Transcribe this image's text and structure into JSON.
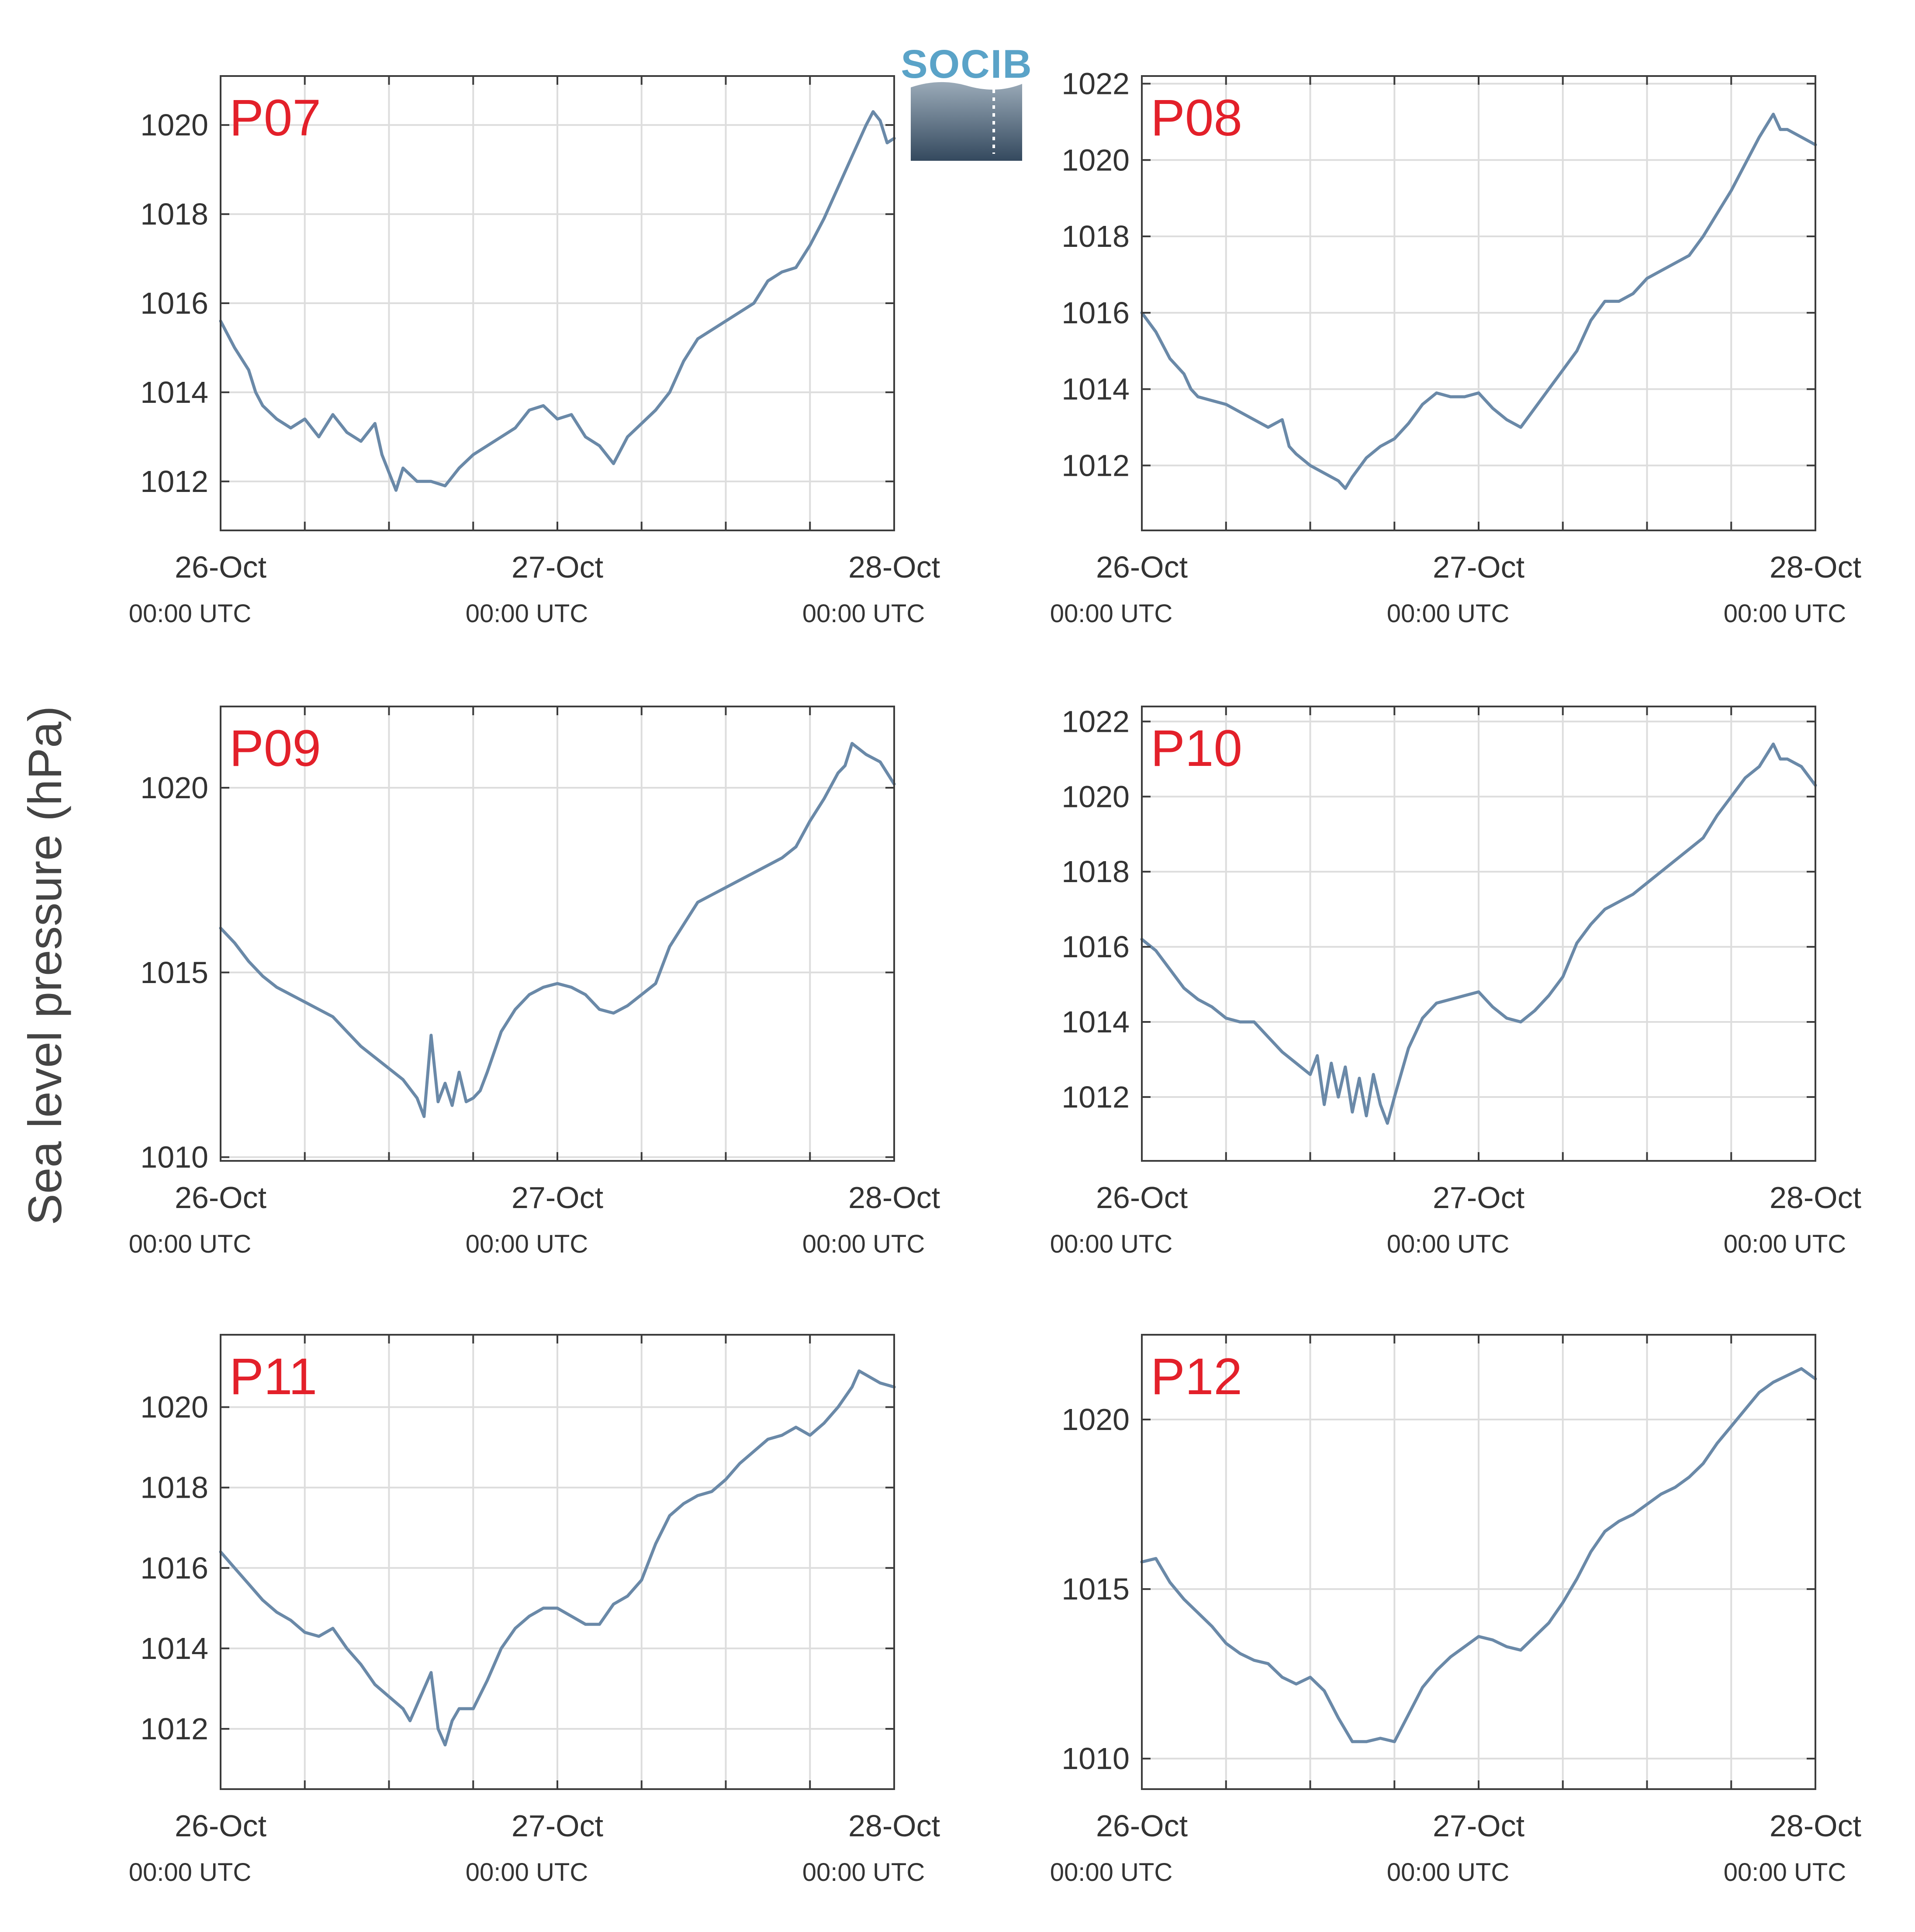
{
  "ylabel": "Sea level pressure (hPa)",
  "logo": {
    "text": "SOCIB"
  },
  "colors": {
    "line": "#6a89a8",
    "panel_label": "#e3202a",
    "logo_accent": "#5aa3c8"
  },
  "x_ticks": [
    {
      "date": "26-Oct",
      "time": "00:00 UTC"
    },
    {
      "date": "27-Oct",
      "time": "00:00 UTC"
    },
    {
      "date": "28-Oct",
      "time": "00:00 UTC"
    }
  ],
  "chart_data": [
    {
      "type": "line",
      "title": "P07",
      "x_unit": "hours since 26-Oct 00:00 UTC",
      "xlim": [
        0,
        48
      ],
      "ylim": [
        1010.9,
        1021.1
      ],
      "yticks": [
        1012,
        1014,
        1016,
        1018,
        1020
      ],
      "x": [
        0,
        1,
        2,
        2.5,
        3,
        4,
        5,
        6,
        7,
        8,
        9,
        10,
        11,
        11.5,
        12,
        12.5,
        13,
        14,
        15,
        16,
        17,
        18,
        19,
        20,
        21,
        22,
        23,
        24,
        25,
        26,
        27,
        28,
        29,
        30,
        31,
        32,
        33,
        34,
        35,
        36,
        37,
        38,
        39,
        40,
        41,
        42,
        43,
        44,
        45,
        46,
        46.5,
        47,
        47.5,
        48
      ],
      "y": [
        1015.6,
        1015.0,
        1014.5,
        1014.0,
        1013.7,
        1013.4,
        1013.2,
        1013.4,
        1013.0,
        1013.5,
        1013.1,
        1012.9,
        1013.3,
        1012.6,
        1012.2,
        1011.8,
        1012.3,
        1012.0,
        1012.0,
        1011.9,
        1012.3,
        1012.6,
        1012.8,
        1013.0,
        1013.2,
        1013.6,
        1013.7,
        1013.4,
        1013.5,
        1013.0,
        1012.8,
        1012.4,
        1013.0,
        1013.3,
        1013.6,
        1014.0,
        1014.7,
        1015.2,
        1015.4,
        1015.6,
        1015.8,
        1016.0,
        1016.5,
        1016.7,
        1016.8,
        1017.3,
        1017.9,
        1018.6,
        1019.3,
        1020.0,
        1020.3,
        1020.1,
        1019.6,
        1019.7
      ]
    },
    {
      "type": "line",
      "title": "P08",
      "x_unit": "hours since 26-Oct 00:00 UTC",
      "xlim": [
        0,
        48
      ],
      "ylim": [
        1010.3,
        1022.2
      ],
      "yticks": [
        1012,
        1014,
        1016,
        1018,
        1020,
        1022
      ],
      "x": [
        0,
        1,
        2,
        3,
        3.5,
        4,
        5,
        6,
        7,
        8,
        9,
        10,
        10.5,
        11,
        12,
        13,
        14,
        14.5,
        15,
        16,
        17,
        18,
        19,
        20,
        21,
        22,
        23,
        24,
        25,
        26,
        27,
        28,
        29,
        30,
        31,
        32,
        33,
        34,
        35,
        36,
        37,
        38,
        39,
        40,
        41,
        42,
        43,
        44,
        45,
        45.5,
        46,
        47,
        48
      ],
      "y": [
        1016.0,
        1015.5,
        1014.8,
        1014.4,
        1014.0,
        1013.8,
        1013.7,
        1013.6,
        1013.4,
        1013.2,
        1013.0,
        1013.2,
        1012.5,
        1012.3,
        1012.0,
        1011.8,
        1011.6,
        1011.4,
        1011.7,
        1012.2,
        1012.5,
        1012.7,
        1013.1,
        1013.6,
        1013.9,
        1013.8,
        1013.8,
        1013.9,
        1013.5,
        1013.2,
        1013.0,
        1013.5,
        1014.0,
        1014.5,
        1015.0,
        1015.8,
        1016.3,
        1016.3,
        1016.5,
        1016.9,
        1017.1,
        1017.3,
        1017.5,
        1018.0,
        1018.6,
        1019.2,
        1019.9,
        1020.6,
        1021.2,
        1020.8,
        1020.8,
        1020.6,
        1020.4
      ]
    },
    {
      "type": "line",
      "title": "P09",
      "x_unit": "hours since 26-Oct 00:00 UTC",
      "xlim": [
        0,
        48
      ],
      "ylim": [
        1009.9,
        1022.2
      ],
      "yticks": [
        1010,
        1015,
        1020
      ],
      "x": [
        0,
        1,
        2,
        3,
        4,
        5,
        6,
        7,
        8,
        9,
        10,
        11,
        12,
        13,
        14,
        14.5,
        15,
        15.5,
        16,
        16.5,
        17,
        17.5,
        18,
        18.5,
        19,
        20,
        21,
        22,
        23,
        24,
        25,
        26,
        27,
        28,
        29,
        30,
        31,
        32,
        33,
        34,
        35,
        36,
        37,
        38,
        39,
        40,
        41,
        42,
        43,
        44,
        44.5,
        45,
        46,
        47,
        48
      ],
      "y": [
        1016.2,
        1015.8,
        1015.3,
        1014.9,
        1014.6,
        1014.4,
        1014.2,
        1014.0,
        1013.8,
        1013.4,
        1013.0,
        1012.7,
        1012.4,
        1012.1,
        1011.6,
        1011.1,
        1013.3,
        1011.5,
        1012.0,
        1011.4,
        1012.3,
        1011.5,
        1011.6,
        1011.8,
        1012.3,
        1013.4,
        1014.0,
        1014.4,
        1014.6,
        1014.7,
        1014.6,
        1014.4,
        1014.0,
        1013.9,
        1014.1,
        1014.4,
        1014.7,
        1015.7,
        1016.3,
        1016.9,
        1017.1,
        1017.3,
        1017.5,
        1017.7,
        1017.9,
        1018.1,
        1018.4,
        1019.1,
        1019.7,
        1020.4,
        1020.6,
        1021.2,
        1020.9,
        1020.7,
        1020.1
      ]
    },
    {
      "type": "line",
      "title": "P10",
      "x_unit": "hours since 26-Oct 00:00 UTC",
      "xlim": [
        0,
        48
      ],
      "ylim": [
        1010.3,
        1022.4
      ],
      "yticks": [
        1012,
        1014,
        1016,
        1018,
        1020,
        1022
      ],
      "x": [
        0,
        1,
        2,
        3,
        4,
        5,
        6,
        7,
        8,
        9,
        10,
        11,
        12,
        12.5,
        13,
        13.5,
        14,
        14.5,
        15,
        15.5,
        16,
        16.5,
        17,
        17.5,
        18,
        19,
        20,
        21,
        22,
        23,
        24,
        25,
        26,
        27,
        28,
        29,
        30,
        31,
        32,
        33,
        34,
        35,
        36,
        37,
        38,
        39,
        40,
        41,
        42,
        43,
        44,
        45,
        45.5,
        46,
        47,
        48
      ],
      "y": [
        1016.2,
        1015.9,
        1015.4,
        1014.9,
        1014.6,
        1014.4,
        1014.1,
        1014.0,
        1014.0,
        1013.6,
        1013.2,
        1012.9,
        1012.6,
        1013.1,
        1011.8,
        1012.9,
        1012.0,
        1012.8,
        1011.6,
        1012.5,
        1011.5,
        1012.6,
        1011.8,
        1011.3,
        1012.0,
        1013.3,
        1014.1,
        1014.5,
        1014.6,
        1014.7,
        1014.8,
        1014.4,
        1014.1,
        1014.0,
        1014.3,
        1014.7,
        1015.2,
        1016.1,
        1016.6,
        1017.0,
        1017.2,
        1017.4,
        1017.7,
        1018.0,
        1018.3,
        1018.6,
        1018.9,
        1019.5,
        1020.0,
        1020.5,
        1020.8,
        1021.4,
        1021.0,
        1021.0,
        1020.8,
        1020.3
      ]
    },
    {
      "type": "line",
      "title": "P11",
      "x_unit": "hours since 26-Oct 00:00 UTC",
      "xlim": [
        0,
        48
      ],
      "ylim": [
        1010.5,
        1021.8
      ],
      "yticks": [
        1012,
        1014,
        1016,
        1018,
        1020
      ],
      "x": [
        0,
        1,
        2,
        3,
        4,
        5,
        6,
        7,
        8,
        9,
        10,
        11,
        12,
        13,
        13.5,
        14,
        15,
        15.5,
        16,
        16.5,
        17,
        18,
        19,
        20,
        21,
        22,
        23,
        24,
        25,
        26,
        27,
        28,
        29,
        30,
        31,
        32,
        33,
        34,
        35,
        36,
        37,
        38,
        39,
        40,
        41,
        42,
        43,
        44,
        45,
        45.5,
        46,
        47,
        48
      ],
      "y": [
        1016.4,
        1016.0,
        1015.6,
        1015.2,
        1014.9,
        1014.7,
        1014.4,
        1014.3,
        1014.5,
        1014.0,
        1013.6,
        1013.1,
        1012.8,
        1012.5,
        1012.2,
        1012.6,
        1013.4,
        1012.0,
        1011.6,
        1012.2,
        1012.5,
        1012.5,
        1013.2,
        1014.0,
        1014.5,
        1014.8,
        1015.0,
        1015.0,
        1014.8,
        1014.6,
        1014.6,
        1015.1,
        1015.3,
        1015.7,
        1016.6,
        1017.3,
        1017.6,
        1017.8,
        1017.9,
        1018.2,
        1018.6,
        1018.9,
        1019.2,
        1019.3,
        1019.5,
        1019.3,
        1019.6,
        1020.0,
        1020.5,
        1020.9,
        1020.8,
        1020.6,
        1020.5
      ]
    },
    {
      "type": "line",
      "title": "P12",
      "x_unit": "hours since 26-Oct 00:00 UTC",
      "xlim": [
        0,
        48
      ],
      "ylim": [
        1009.1,
        1022.5
      ],
      "yticks": [
        1010,
        1015,
        1020
      ],
      "x": [
        0,
        1,
        2,
        3,
        4,
        5,
        6,
        7,
        8,
        9,
        10,
        11,
        12,
        13,
        14,
        15,
        16,
        17,
        18,
        19,
        20,
        21,
        22,
        23,
        24,
        25,
        26,
        27,
        28,
        29,
        30,
        31,
        32,
        33,
        34,
        35,
        36,
        37,
        38,
        39,
        40,
        41,
        42,
        43,
        44,
        45,
        46,
        47,
        48
      ],
      "y": [
        1015.8,
        1015.9,
        1015.2,
        1014.7,
        1014.3,
        1013.9,
        1013.4,
        1013.1,
        1012.9,
        1012.8,
        1012.4,
        1012.2,
        1012.4,
        1012.0,
        1011.2,
        1010.5,
        1010.5,
        1010.6,
        1010.5,
        1011.3,
        1012.1,
        1012.6,
        1013.0,
        1013.3,
        1013.6,
        1013.5,
        1013.3,
        1013.2,
        1013.6,
        1014.0,
        1014.6,
        1015.3,
        1016.1,
        1016.7,
        1017.0,
        1017.2,
        1017.5,
        1017.8,
        1018.0,
        1018.3,
        1018.7,
        1019.3,
        1019.8,
        1020.3,
        1020.8,
        1021.1,
        1021.3,
        1021.5,
        1021.2
      ]
    }
  ]
}
